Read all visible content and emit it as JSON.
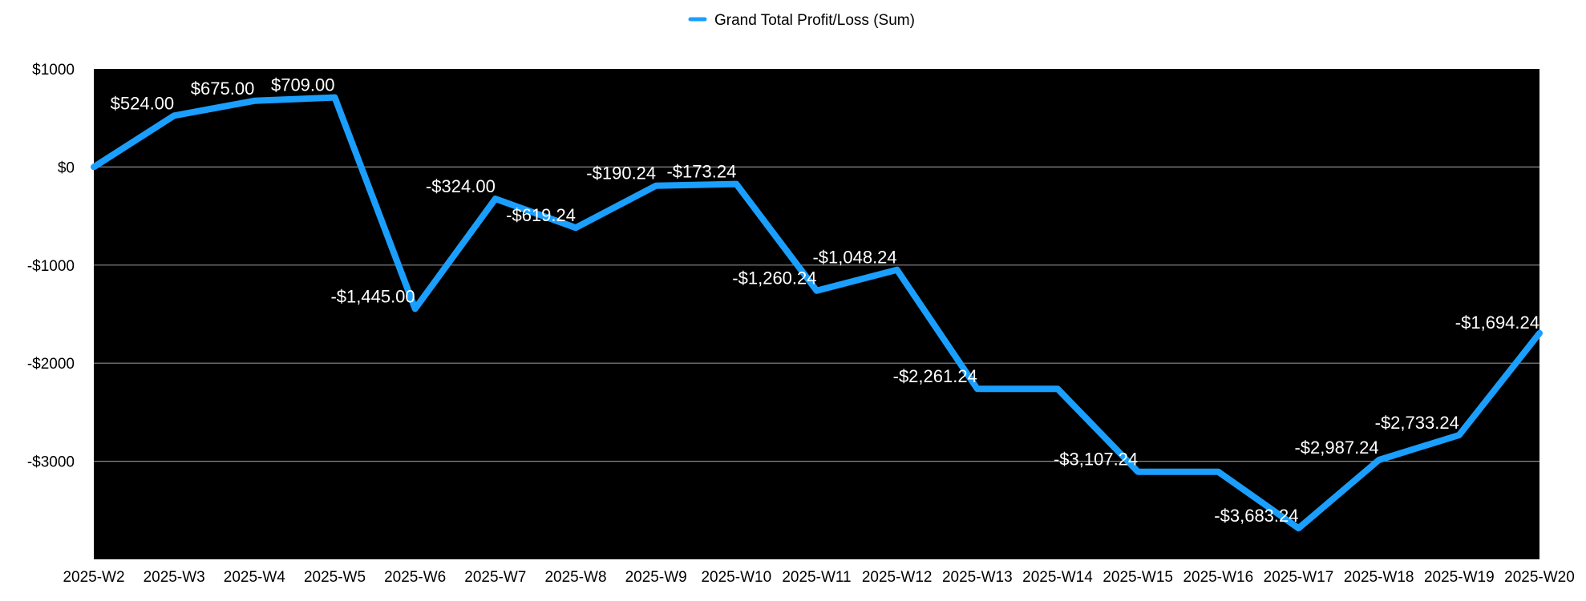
{
  "chart_data": {
    "type": "line",
    "legend": {
      "position": "top-center"
    },
    "grid": true,
    "categories": [
      "2025-W2",
      "2025-W3",
      "2025-W4",
      "2025-W5",
      "2025-W6",
      "2025-W7",
      "2025-W8",
      "2025-W9",
      "2025-W10",
      "2025-W11",
      "2025-W12",
      "2025-W13",
      "2025-W14",
      "2025-W15",
      "2025-W16",
      "2025-W17",
      "2025-W18",
      "2025-W19",
      "2025-W20"
    ],
    "series": [
      {
        "name": "Grand Total Profit/Loss (Sum)",
        "color": "#1a9fff",
        "values": [
          0,
          524,
          675,
          709,
          -1445,
          -324,
          -619.24,
          -190.24,
          -173.24,
          -1260.24,
          -1048.24,
          -2261.24,
          -2261.24,
          -3107.24,
          -3107.24,
          -3683.24,
          -2987.24,
          -2733.24,
          -1694.24
        ],
        "labels": [
          "",
          "$524.00",
          "$675.00",
          "$709.00",
          "-$1,445.00",
          "-$324.00",
          "-$619.24",
          "-$190.24",
          "-$173.24",
          "-$1,260.24",
          "-$1,048.24",
          "-$2,261.24",
          "",
          "-$3,107.24",
          "",
          "-$3,683.24",
          "-$2,987.24",
          "-$2,733.24",
          "-$1,694.24"
        ]
      }
    ],
    "yticks": [
      {
        "value": 1000,
        "label": "$1000"
      },
      {
        "value": 0,
        "label": "$0"
      },
      {
        "value": -1000,
        "label": "-$1000"
      },
      {
        "value": -2000,
        "label": "-$2000"
      },
      {
        "value": -3000,
        "label": "-$3000"
      }
    ],
    "ylim": [
      -4000,
      1000
    ],
    "plot_background": "#000000",
    "gridline_color": "#8a8a8a"
  }
}
